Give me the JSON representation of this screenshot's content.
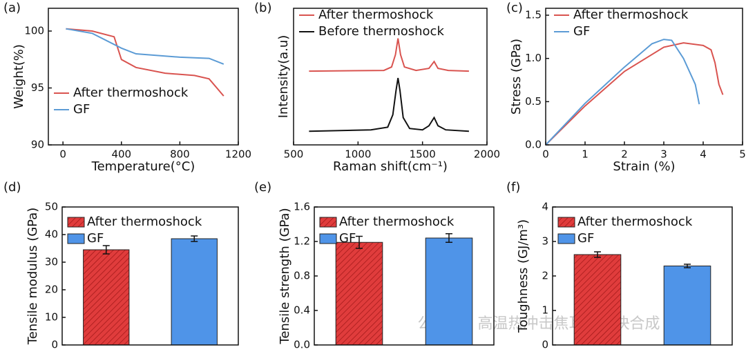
{
  "chart_data": [
    {
      "type": "line",
      "label": "(a)",
      "xlabel": "Temperature(°C)",
      "ylabel": "Weight(%)",
      "xlim": [
        -100,
        1200
      ],
      "xticks": [
        0,
        400,
        800,
        1200
      ],
      "ylim": [
        90,
        102
      ],
      "yticks": [
        90,
        95,
        100
      ],
      "legend": "lower left",
      "series": [
        {
          "name": "After thermoshock",
          "color": "#d9534f",
          "x": [
            20,
            200,
            350,
            400,
            500,
            700,
            900,
            1000,
            1100
          ],
          "values": [
            100.2,
            100,
            99.5,
            97.5,
            96.8,
            96.3,
            96.1,
            95.8,
            94.3
          ]
        },
        {
          "name": "GF",
          "color": "#5b9bd5",
          "x": [
            20,
            200,
            400,
            500,
            800,
            1000,
            1100
          ],
          "values": [
            100.2,
            99.8,
            98.5,
            98,
            97.7,
            97.6,
            97.1
          ]
        }
      ]
    },
    {
      "type": "line",
      "label": "(b)",
      "xlabel": "Raman shift(cm⁻¹)",
      "ylabel": "Intensity(a.u)",
      "xlim": [
        500,
        2000
      ],
      "xticks": [
        500,
        1000,
        1500,
        2000
      ],
      "ylim": [
        0,
        10
      ],
      "legend": "upper left",
      "series": [
        {
          "name": "After thermoshock",
          "color": "#d9534f",
          "x": [
            620,
            1200,
            1260,
            1290,
            1310,
            1330,
            1360,
            1450,
            1550,
            1590,
            1620,
            1700,
            1860
          ],
          "values": [
            5.4,
            5.45,
            5.7,
            6.6,
            7.8,
            6.6,
            5.7,
            5.45,
            5.6,
            6.1,
            5.6,
            5.45,
            5.4
          ]
        },
        {
          "name": "Before thermoshock",
          "color": "#111111",
          "x": [
            620,
            1100,
            1230,
            1270,
            1295,
            1310,
            1325,
            1350,
            1400,
            1500,
            1550,
            1590,
            1620,
            1680,
            1860
          ],
          "values": [
            1.0,
            1.1,
            1.3,
            2.2,
            4.0,
            4.9,
            4.0,
            2.0,
            1.2,
            1.1,
            1.4,
            2.0,
            1.4,
            1.1,
            1.0
          ]
        }
      ]
    },
    {
      "type": "line",
      "label": "(c)",
      "xlabel": "Strain (%)",
      "ylabel": "Stress (GPa)",
      "xlim": [
        0,
        5
      ],
      "xticks": [
        0,
        1,
        2,
        3,
        4,
        5
      ],
      "ylim": [
        0,
        1.58
      ],
      "yticks": [
        {
          "value": 0,
          "label": "0.0"
        },
        0.5,
        {
          "value": 1,
          "label": "1.0"
        },
        1.5
      ],
      "legend": "upper center",
      "series": [
        {
          "name": "After thermoshock",
          "color": "#d9534f",
          "x": [
            0,
            1,
            2,
            3,
            3.5,
            4,
            4.2,
            4.3,
            4.4,
            4.5
          ],
          "values": [
            0,
            0.45,
            0.85,
            1.13,
            1.18,
            1.15,
            1.1,
            0.95,
            0.7,
            0.58
          ]
        },
        {
          "name": "GF",
          "color": "#5b9bd5",
          "x": [
            0,
            1,
            2,
            2.7,
            3,
            3.2,
            3.5,
            3.8,
            3.9
          ],
          "values": [
            0,
            0.48,
            0.9,
            1.17,
            1.22,
            1.21,
            1.0,
            0.7,
            0.47
          ]
        }
      ]
    },
    {
      "type": "bar",
      "label": "(d)",
      "ylabel": "Tensile modulus (GPa)",
      "ylim": [
        0,
        50
      ],
      "yticks": [
        0,
        10,
        20,
        30,
        40,
        50
      ],
      "legend": "upper left",
      "series": [
        {
          "name": "After thermoshock",
          "color": "#e03c3c",
          "hatch": true,
          "values": [
            34.5
          ],
          "errors": [
            1.5
          ]
        },
        {
          "name": "GF",
          "color": "#4f94e8",
          "hatch": false,
          "values": [
            38.5
          ],
          "errors": [
            1
          ]
        }
      ]
    },
    {
      "type": "bar",
      "label": "(e)",
      "ylabel": "Tensile strength (GPa)",
      "ylim": [
        0,
        1.6
      ],
      "yticks": [
        {
          "value": 0,
          "label": "0.0"
        },
        0.4,
        0.8,
        1.2,
        1.6
      ],
      "legend": "upper left",
      "series": [
        {
          "name": "After thermoshock",
          "color": "#e03c3c",
          "hatch": true,
          "values": [
            1.19
          ],
          "errors": [
            0.07
          ]
        },
        {
          "name": "GF",
          "color": "#4f94e8",
          "hatch": false,
          "values": [
            1.24
          ],
          "errors": [
            0.05
          ]
        }
      ]
    },
    {
      "type": "bar",
      "label": "(f)",
      "ylabel": "Toughness (GJ/m³)",
      "ylim": [
        0,
        4
      ],
      "yticks": [
        0,
        1,
        2,
        3,
        4
      ],
      "legend": "upper left",
      "series": [
        {
          "name": "After thermoshock",
          "color": "#e03c3c",
          "hatch": true,
          "values": [
            2.62
          ],
          "errors": [
            0.08
          ]
        },
        {
          "name": "GF",
          "color": "#4f94e8",
          "hatch": false,
          "values": [
            2.29
          ],
          "errors": [
            0.05
          ]
        }
      ]
    }
  ],
  "watermark": "公众号 · 高温热冲击焦耳热超快合成"
}
